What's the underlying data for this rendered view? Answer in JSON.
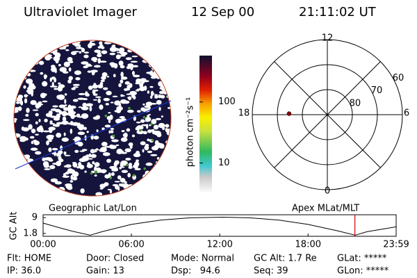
{
  "header": {
    "title": "Ultraviolet Imager",
    "date": "12 Sep 00",
    "time": "21:11:02 UT"
  },
  "colorbar": {
    "label": "photon cm⁻²s⁻¹",
    "lim": [
      3.2,
      575
    ],
    "ticks": [
      10,
      100
    ],
    "log": true
  },
  "polar": {
    "lat_lim": [
      90,
      60
    ],
    "lat_ticks": [
      80,
      70,
      60
    ],
    "mlt_ticks": [
      0,
      6,
      12,
      18
    ],
    "point": {
      "mlat": 74.7,
      "mlt": 17.9,
      "color": "#8b0000"
    }
  },
  "altitude": {
    "left_label": "Geographic Lat/Lon",
    "right_label": "Apex MLat/MLT",
    "ylabel": "GC Alt",
    "xlim": [
      0,
      23.983
    ],
    "ylim": [
      0.5,
      10.3
    ],
    "xticks": [
      {
        "value": 0,
        "label": "00:00"
      },
      {
        "value": 6,
        "label": "06:00"
      },
      {
        "value": 12,
        "label": "12:00"
      },
      {
        "value": 18,
        "label": "18:00"
      },
      {
        "value": 23.983,
        "label": "23:59"
      }
    ],
    "yticks": [
      1.8,
      9.0
    ],
    "x": [
      0,
      1,
      2,
      3.2,
      4,
      6,
      8,
      10,
      12.2,
      14,
      16,
      18,
      20,
      21.2,
      22,
      23.983
    ],
    "values": [
      6.5,
      4.6,
      2.8,
      1.0,
      2.6,
      5.9,
      7.9,
      8.9,
      9.2,
      8.9,
      7.9,
      5.9,
      3.0,
      1.0,
      2.6,
      4.8
    ],
    "marker_time": 21.18,
    "marker_color": "#cc0000"
  },
  "info": [
    "Flt: HOME",
    "IP: 36.0",
    "Door: Closed",
    "Gain: 13",
    "Mode: Normal",
    "Dsp:   94.6",
    "GC Alt: 1.7 Re",
    "Seq: 39",
    "GLat: *****",
    "GLon: *****"
  ]
}
